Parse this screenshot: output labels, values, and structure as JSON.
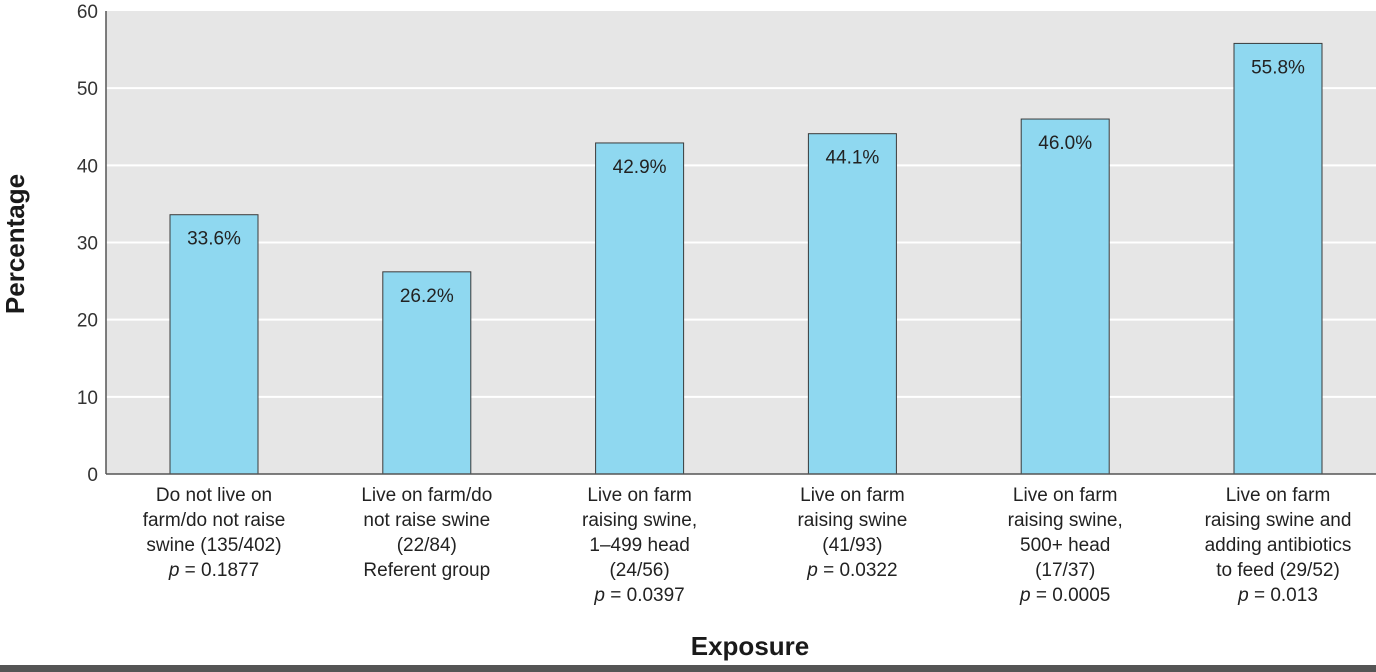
{
  "chart_data": {
    "type": "bar",
    "title": "",
    "xlabel": "Exposure",
    "ylabel": "Percentage",
    "ylim": [
      0,
      60
    ],
    "yticks": [
      0,
      10,
      20,
      30,
      40,
      50,
      60
    ],
    "grid": true,
    "categories": [
      {
        "lines": [
          "Do not live on",
          "farm/do not raise",
          "swine (135/402)"
        ],
        "p": "0.1877"
      },
      {
        "lines": [
          "Live on farm/do",
          "not raise swine",
          "(22/84)",
          "Referent group"
        ],
        "p": null
      },
      {
        "lines": [
          "Live on farm",
          "raising swine,",
          "1–499 head",
          "(24/56)"
        ],
        "p": "0.0397"
      },
      {
        "lines": [
          "Live on farm",
          "raising swine",
          "(41/93)"
        ],
        "p": "0.0322"
      },
      {
        "lines": [
          "Live on farm",
          "raising swine,",
          "500+ head",
          "(17/37)"
        ],
        "p": "0.0005"
      },
      {
        "lines": [
          "Live on farm",
          "raising swine and",
          "adding antibiotics",
          "to feed (29/52)"
        ],
        "p": "0.013"
      }
    ],
    "values": [
      33.6,
      26.2,
      42.9,
      44.1,
      46.0,
      55.8
    ],
    "data_labels": [
      "33.6%",
      "26.2%",
      "42.9%",
      "44.1%",
      "46.0%",
      "55.8%"
    ],
    "p_prefix": "p",
    "p_sep": " = ",
    "colors": {
      "bar_fill": "#8fd8f0",
      "bar_stroke": "#3a3a3a",
      "plot_background": "#e6e6e6",
      "gridline": "#ffffff",
      "axis": "#555555"
    }
  }
}
